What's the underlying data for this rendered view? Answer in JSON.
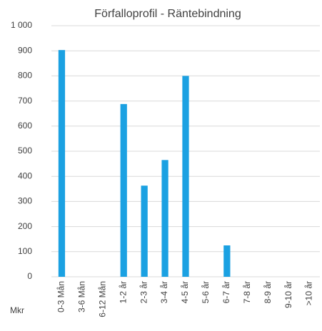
{
  "chart_data": {
    "type": "bar",
    "title": "Förfalloprofil - Räntebindning",
    "y_label": "Mkr",
    "categories": [
      "0-3 Mån",
      "3-6 Mån",
      "6-12 Mån",
      "1-2 år",
      "2-3 år",
      "3-4 år",
      "4-5 år",
      "5-6 år",
      "6-7 år",
      "7-8 år",
      "8-9 år",
      "9-10 år",
      ">10 år"
    ],
    "values": [
      903,
      0,
      0,
      688,
      363,
      465,
      800,
      0,
      125,
      0,
      0,
      0,
      0
    ],
    "color": "#1ba1e2",
    "ylim": [
      0,
      1000
    ],
    "yticks": [
      0,
      100,
      200,
      300,
      400,
      500,
      600,
      700,
      800,
      900,
      {
        "value": 1000,
        "label": "1 000"
      }
    ],
    "grid": true
  }
}
